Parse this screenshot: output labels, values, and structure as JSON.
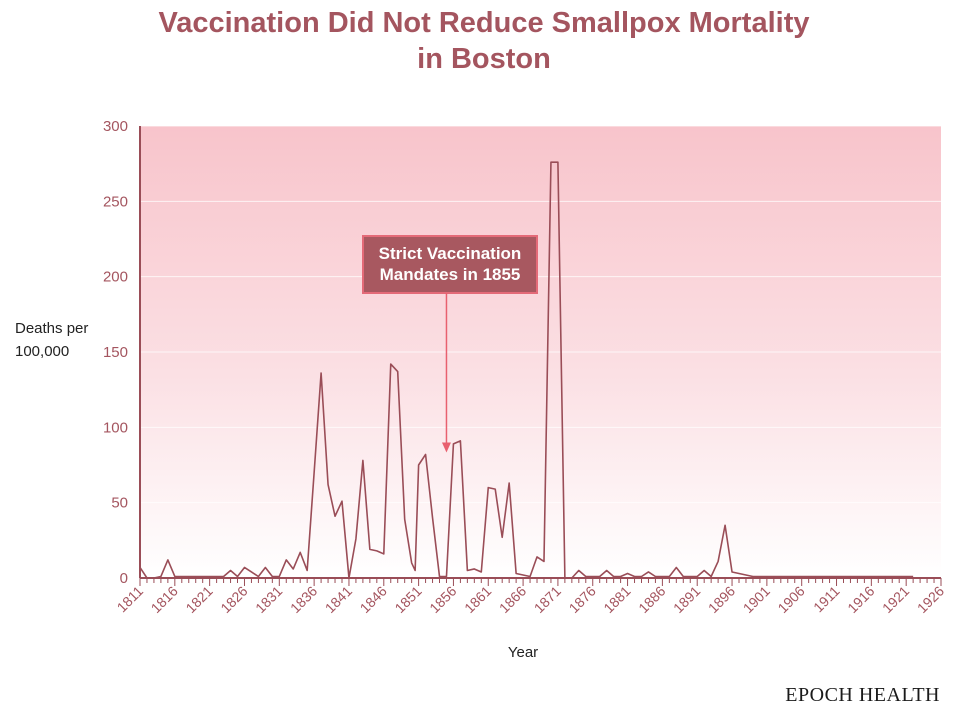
{
  "colors": {
    "accent": "#a4555f",
    "line": "#9a4d57",
    "plot_bg_top": "#f8c4cb",
    "plot_bg_bottom": "#ffffff",
    "annotation_bg": "#a85860",
    "annotation_border": "#e46a78",
    "arrow": "#e8606f"
  },
  "brand": "EPOCH HEALTH",
  "chart_data": {
    "type": "line",
    "title": [
      "Vaccination Did Not Reduce Smallpox Mortality",
      "in Boston"
    ],
    "xlabel": "Year",
    "ylabel": [
      "Deaths per",
      "100,000"
    ],
    "xlim": [
      1811,
      1926
    ],
    "ylim": [
      0,
      300
    ],
    "yticks": [
      "0",
      "50",
      "100",
      "150",
      "200",
      "250",
      "300"
    ],
    "xticks": [
      "1811",
      "1816",
      "1821",
      "1826",
      "1831",
      "1836",
      "1841",
      "1846",
      "1851",
      "1856",
      "1861",
      "1866",
      "1871",
      "1876",
      "1881",
      "1886",
      "1891",
      "1896",
      "1901",
      "1906",
      "1911",
      "1916",
      "1921",
      "1926"
    ],
    "grid": "horizontal",
    "annotation": {
      "lines": [
        "Strict Vaccination",
        "Mandates in 1855"
      ],
      "x": 1855,
      "y": 82
    },
    "series": [
      {
        "x": [
          1811,
          1812,
          1813,
          1814,
          1815,
          1816,
          1817,
          1818,
          1819,
          1820,
          1821,
          1822,
          1823,
          1824,
          1825,
          1826,
          1827,
          1828,
          1829,
          1830,
          1831,
          1832,
          1833,
          1834,
          1835,
          1836,
          1837,
          1838,
          1839,
          1840,
          1841,
          1842,
          1843,
          1844,
          1845,
          1846,
          1847,
          1848,
          1849,
          1850,
          1850.5,
          1851,
          1852,
          1853,
          1854,
          1855,
          1856,
          1857,
          1858,
          1859,
          1860,
          1861,
          1862,
          1863,
          1864,
          1865,
          1866,
          1867,
          1868,
          1869,
          1870,
          1871,
          1872,
          1872.5,
          1873,
          1874,
          1875,
          1876,
          1877,
          1878,
          1879,
          1880,
          1881,
          1882,
          1883,
          1884,
          1885,
          1886,
          1887,
          1888,
          1889,
          1890,
          1891,
          1892,
          1893,
          1894,
          1895,
          1896,
          1897,
          1898,
          1899,
          1900,
          1901,
          1902,
          1903,
          1904,
          1905,
          1906,
          1907,
          1908,
          1909,
          1910,
          1911,
          1912,
          1913,
          1914,
          1915,
          1916,
          1917,
          1918,
          1919,
          1920,
          1921,
          1922
        ],
        "y": [
          7,
          0,
          0,
          1,
          12,
          1,
          1,
          1,
          1,
          1,
          1,
          1,
          1,
          5,
          1,
          7,
          4,
          1,
          7,
          1,
          1,
          12,
          6,
          17,
          5,
          70,
          136,
          62,
          41,
          51,
          0,
          26,
          78,
          19,
          18,
          16,
          142,
          137,
          39,
          10,
          5,
          75,
          82,
          40,
          1,
          1,
          89,
          91,
          5,
          6,
          4,
          60,
          59,
          27,
          63,
          3,
          2,
          1,
          14,
          11,
          276,
          276,
          0,
          0,
          0,
          5,
          1,
          1,
          1,
          5,
          1,
          1,
          3,
          1,
          1,
          4,
          1,
          1,
          1,
          7,
          1,
          1,
          1,
          5,
          1,
          11,
          35,
          4,
          3,
          2,
          1,
          1,
          1,
          1,
          1,
          1,
          1,
          1,
          1,
          1,
          1,
          1,
          1,
          1,
          1,
          1,
          1,
          1,
          1,
          1,
          1,
          1,
          1,
          1
        ]
      }
    ]
  }
}
